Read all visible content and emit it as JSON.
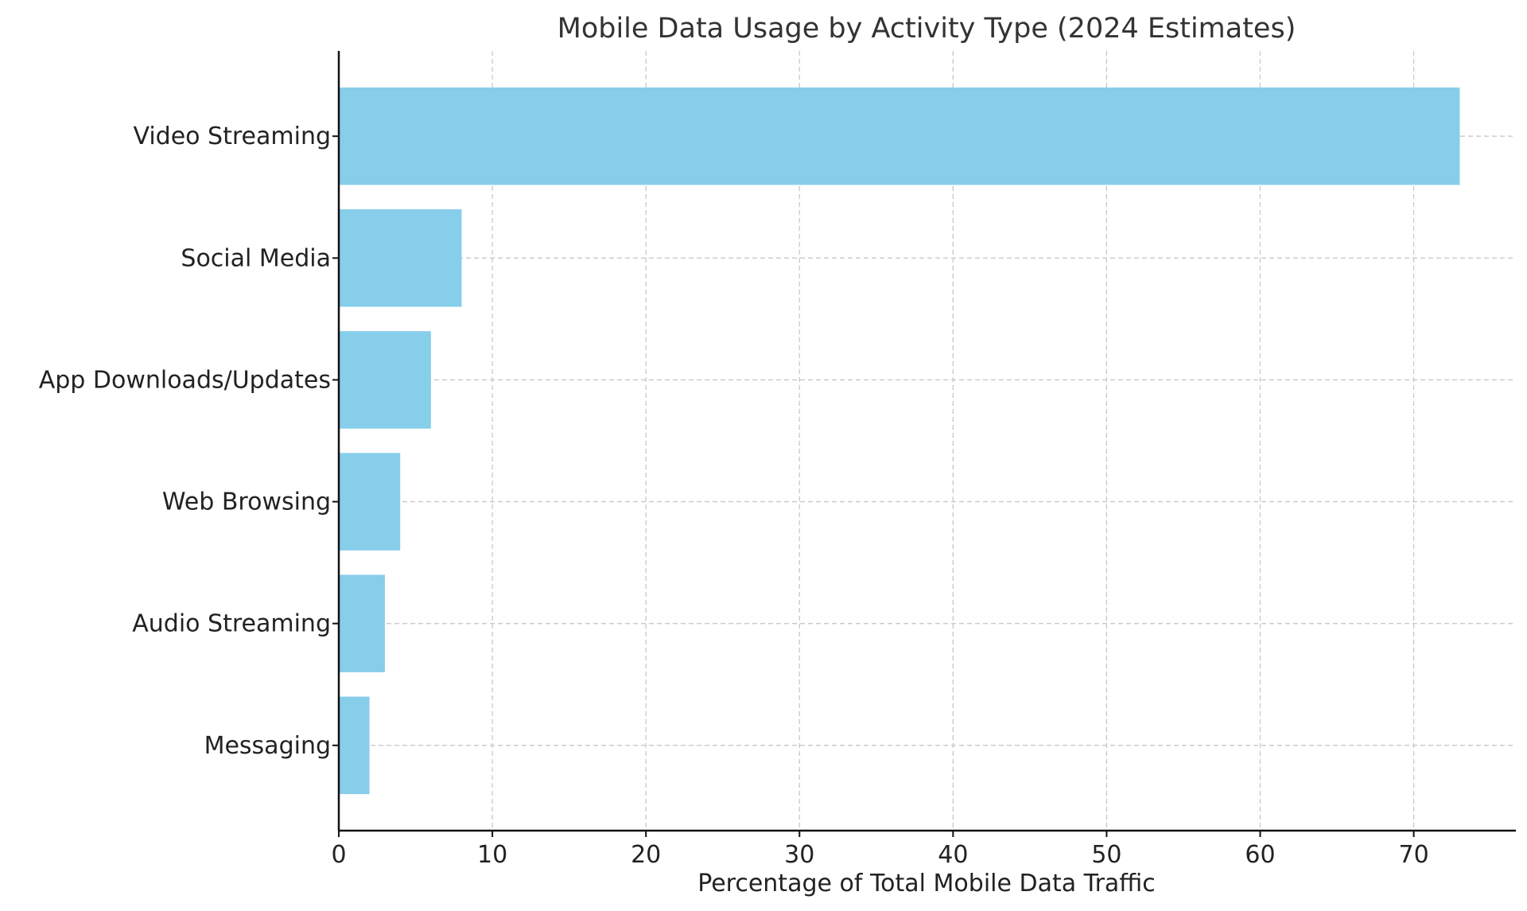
{
  "chart_data": {
    "type": "bar",
    "orientation": "horizontal",
    "title": "Mobile Data Usage by Activity Type (2024 Estimates)",
    "xlabel": "Percentage of Total Mobile Data Traffic",
    "ylabel": "",
    "categories": [
      "Video Streaming",
      "Social Media",
      "App Downloads/Updates",
      "Web Browsing",
      "Audio Streaming",
      "Messaging"
    ],
    "values": [
      73,
      8,
      6,
      4,
      3,
      2
    ],
    "xlim": [
      0,
      76.65
    ],
    "xticks": [
      0,
      10,
      20,
      30,
      40,
      50,
      60,
      70
    ],
    "grid": true,
    "bar_color": "#87ceeb"
  }
}
